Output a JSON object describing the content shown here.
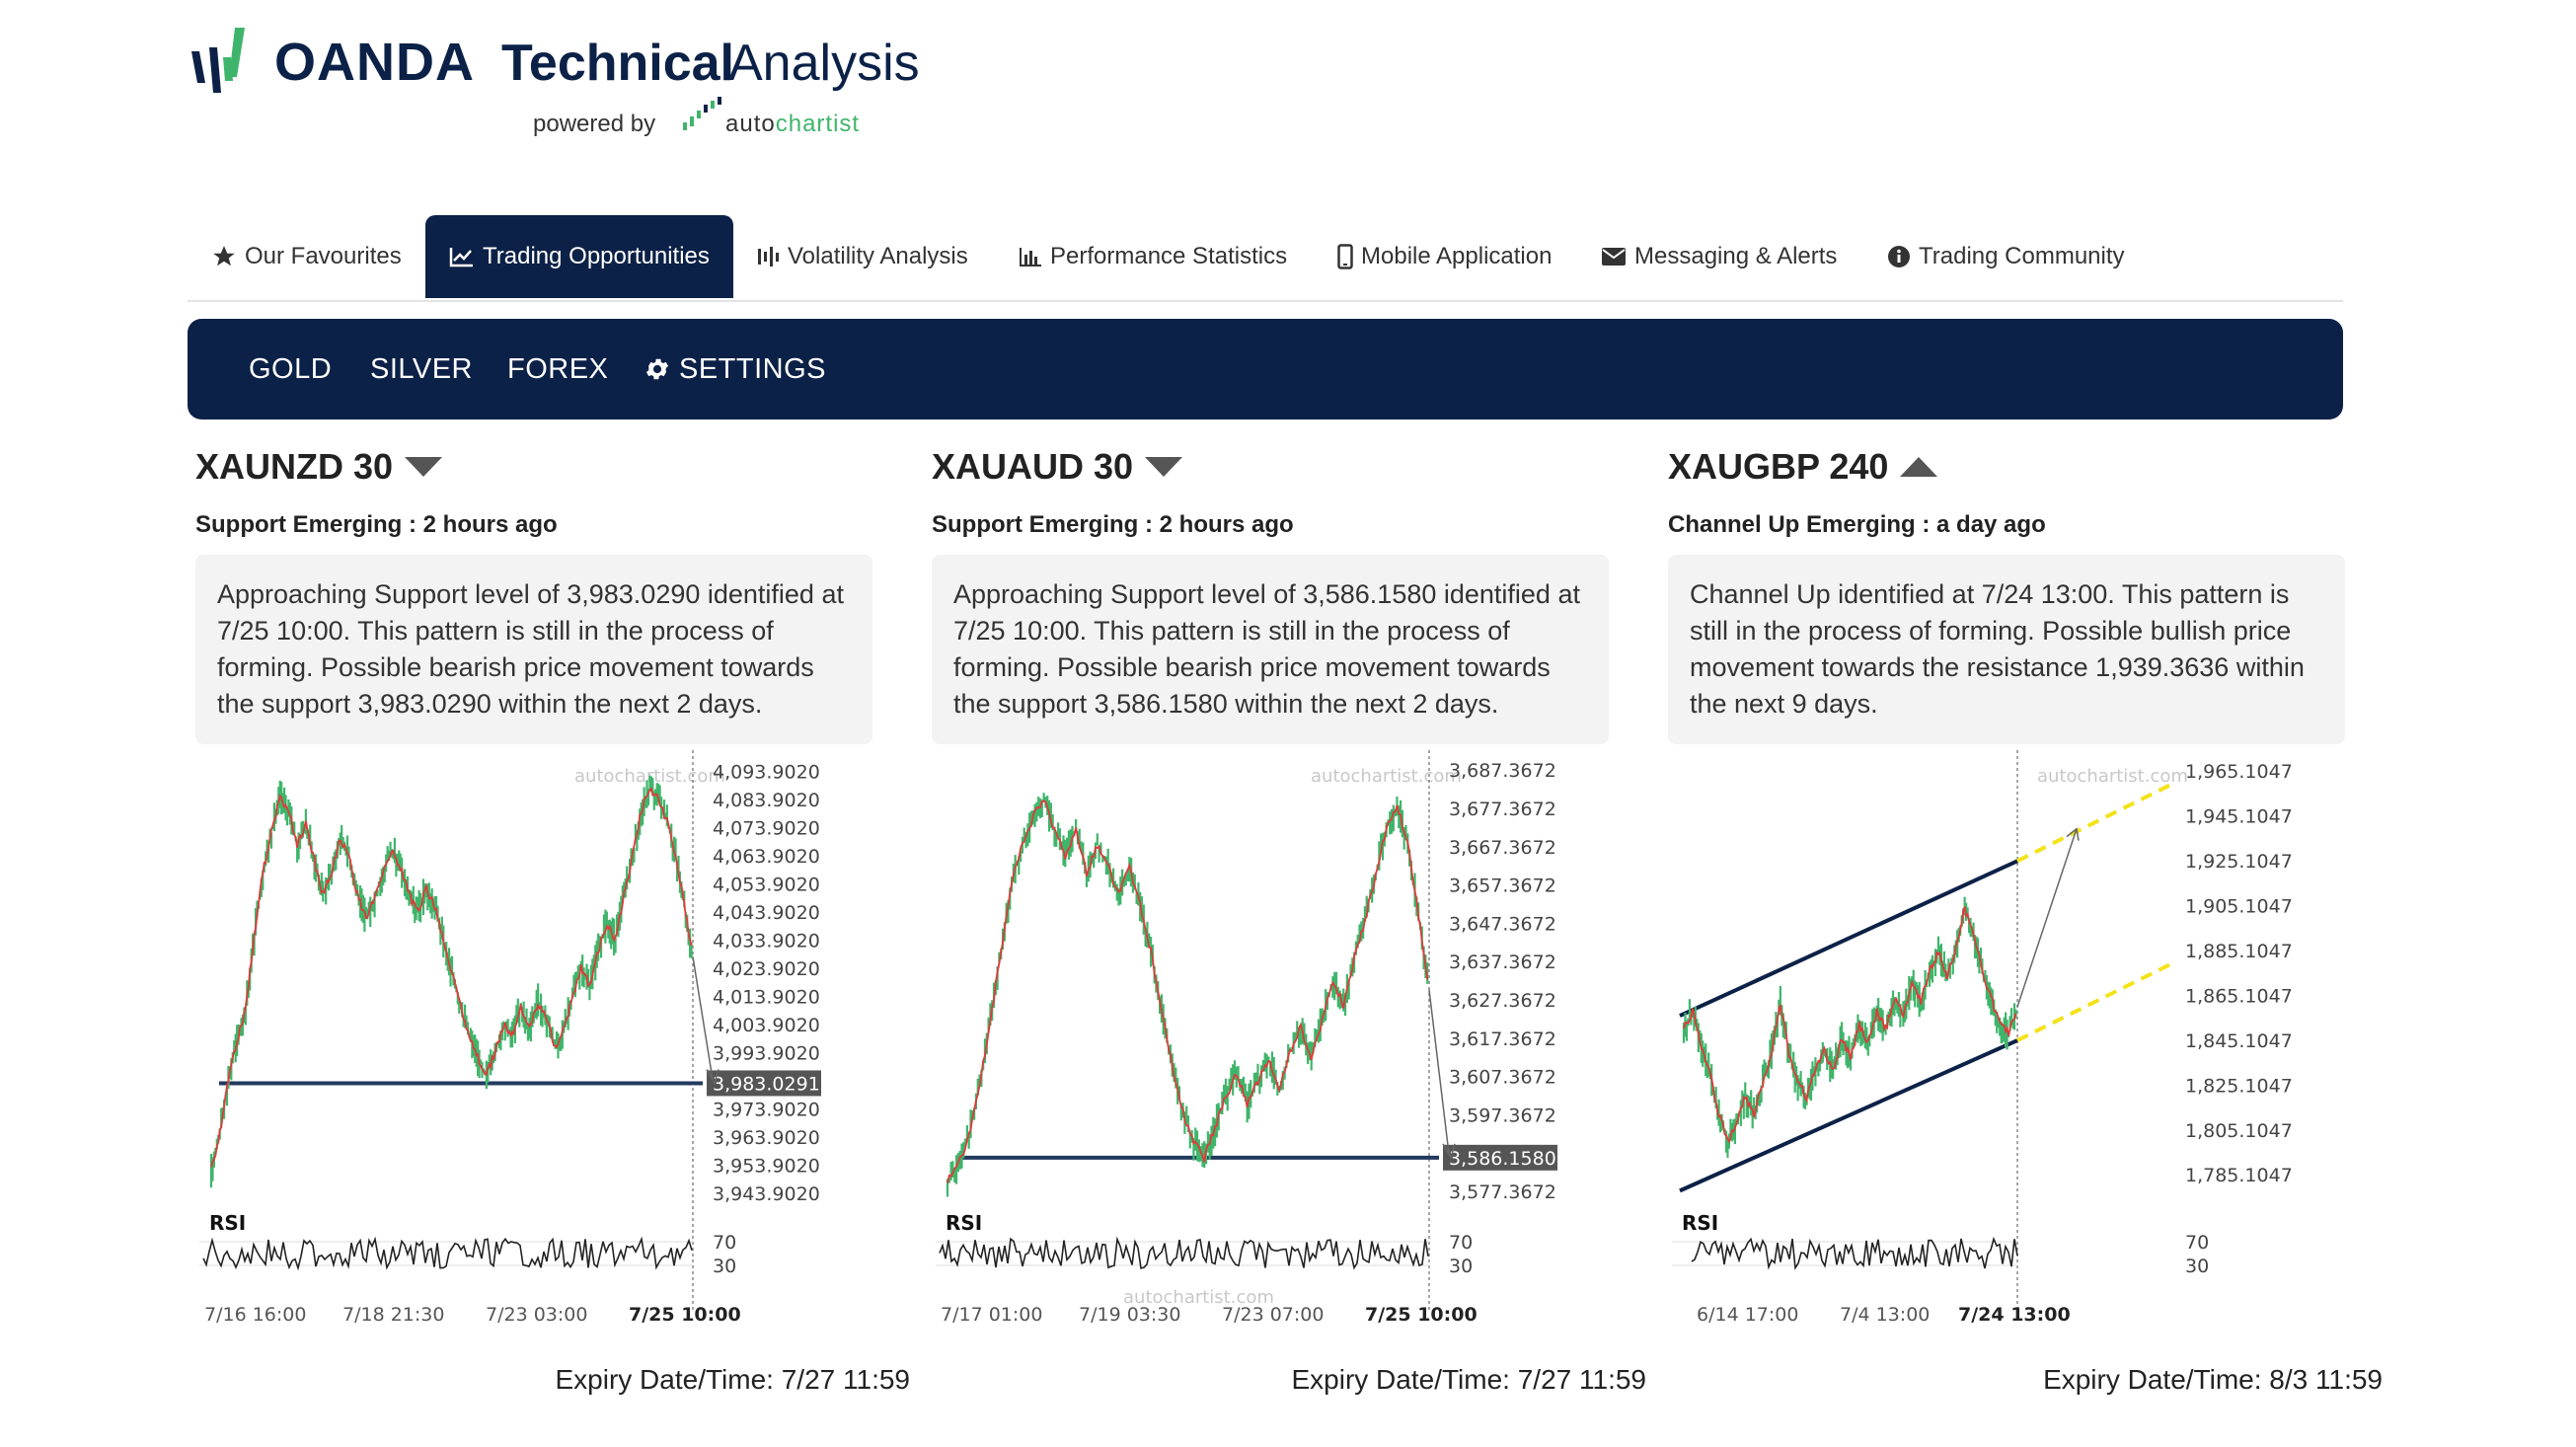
{
  "header": {
    "brand": "OANDA",
    "title_bold": "Technical",
    "title_light": "Analysis",
    "powered_by": "powered by",
    "partner_a": "auto",
    "partner_b": "chartist"
  },
  "nav": {
    "tabs": [
      {
        "label": "Our Favourites",
        "icon": "star-icon"
      },
      {
        "label": "Trading Opportunities",
        "icon": "line-chart-icon",
        "active": true
      },
      {
        "label": "Volatility Analysis",
        "icon": "candles-icon"
      },
      {
        "label": "Performance Statistics",
        "icon": "bar-chart-icon"
      },
      {
        "label": "Mobile Application",
        "icon": "mobile-icon"
      },
      {
        "label": "Messaging & Alerts",
        "icon": "envelope-icon"
      },
      {
        "label": "Trading Community",
        "icon": "info-icon"
      }
    ]
  },
  "subnav": {
    "items": [
      {
        "label": "GOLD"
      },
      {
        "label": "SILVER"
      },
      {
        "label": "FOREX"
      },
      {
        "label": "SETTINGS",
        "icon": "gear-icon"
      }
    ]
  },
  "colors": {
    "navy": "#0c2147",
    "up": "#3fb56b",
    "down": "#e03a3a",
    "projection": "#f4e21a"
  },
  "panels": [
    {
      "title": "XAUNZD 30",
      "direction": "down",
      "subtitle": "Support Emerging : 2 hours ago",
      "description": "Approaching Support level of 3,983.0290 identified at 7/25 10:00. This pattern is still in the process of forming. Possible bearish price movement towards the support 3,983.0290 within the next 2 days.",
      "expiry": "Expiry Date/Time: 7/27 11:59",
      "chart_data": {
        "type": "line",
        "pattern": "support",
        "watermark": "autochartist.com",
        "y_ticks": [
          "4,093.9020",
          "4,083.9020",
          "4,073.9020",
          "4,063.9020",
          "4,053.9020",
          "4,043.9020",
          "4,033.9020",
          "4,023.9020",
          "4,013.9020",
          "4,003.9020",
          "3,993.9020",
          "3,983.0291",
          "3,973.9020",
          "3,963.9020",
          "3,953.9020",
          "3,943.9020"
        ],
        "highlight_label": "3,983.0291",
        "support_level": 3983.0291,
        "ylim": [
          3940,
          4098
        ],
        "price": [
          3952,
          3965,
          3985,
          3998,
          4010,
          4035,
          4058,
          4072,
          4085,
          4080,
          4068,
          4075,
          4062,
          4050,
          4058,
          4070,
          4064,
          4050,
          4042,
          4048,
          4058,
          4066,
          4060,
          4050,
          4044,
          4052,
          4046,
          4034,
          4022,
          4010,
          4000,
          3992,
          3986,
          3994,
          4004,
          4000,
          4010,
          4002,
          4012,
          4006,
          3996,
          4002,
          4014,
          4024,
          4018,
          4030,
          4040,
          4034,
          4050,
          4064,
          4080,
          4088,
          4084,
          4076,
          4064,
          4046,
          4028
        ],
        "rsi_ticks": [
          "70",
          "30"
        ],
        "rsi_label": "RSI",
        "x_ticks": [
          "7/16 16:00",
          "7/18 21:30",
          "7/23 03:00",
          "7/25 10:00"
        ],
        "x_bold_index": 3
      }
    },
    {
      "title": "XAUAUD 30",
      "direction": "down",
      "subtitle": "Support Emerging : 2 hours ago",
      "description": "Approaching Support level of 3,586.1580 identified at 7/25 10:00. This pattern is still in the process of forming. Possible bearish price movement towards the support 3,586.1580 within the next 2 days.",
      "expiry": "Expiry Date/Time: 7/27 11:59",
      "chart_data": {
        "type": "line",
        "pattern": "support",
        "watermark": "autochartist.com",
        "y_ticks": [
          "3,687.3672",
          "3,677.3672",
          "3,667.3672",
          "3,657.3672",
          "3,647.3672",
          "3,637.3672",
          "3,627.3672",
          "3,617.3672",
          "3,607.3672",
          "3,597.3672",
          "3,586.1580",
          "3,577.3672"
        ],
        "highlight_label": "3,586.1580",
        "support_level": 3586.158,
        "ylim": [
          3574,
          3690
        ],
        "price": [
          3580,
          3584,
          3592,
          3605,
          3622,
          3640,
          3658,
          3668,
          3675,
          3680,
          3672,
          3665,
          3672,
          3660,
          3668,
          3662,
          3655,
          3662,
          3652,
          3640,
          3625,
          3610,
          3598,
          3590,
          3586,
          3594,
          3602,
          3608,
          3600,
          3606,
          3612,
          3604,
          3614,
          3620,
          3612,
          3622,
          3632,
          3626,
          3638,
          3648,
          3660,
          3672,
          3678,
          3668,
          3650,
          3630
        ],
        "rsi_ticks": [
          "70",
          "30"
        ],
        "rsi_label": "RSI",
        "x_ticks": [
          "7/17 01:00",
          "7/19 03:30",
          "7/23 07:00",
          "7/25 10:00"
        ],
        "x_bold_index": 3
      }
    },
    {
      "title": "XAUGBP 240",
      "direction": "up",
      "subtitle": "Channel Up Emerging : a day ago",
      "description": "Channel Up identified at 7/24 13:00. This pattern is still in the process of forming. Possible bullish price movement towards the resistance 1,939.3636 within the next 9 days.",
      "expiry": "Expiry Date/Time: 8/3 11:59",
      "chart_data": {
        "type": "line",
        "pattern": "channel-up",
        "watermark": "autochartist.com",
        "y_ticks": [
          "1,965.1047",
          "1,945.1047",
          "1,925.1047",
          "1,905.1047",
          "1,885.1047",
          "1,865.1047",
          "1,845.1047",
          "1,825.1047",
          "1,805.1047",
          "1,785.1047"
        ],
        "resistance_target": 1939.3636,
        "ylim": [
          1772,
          1970
        ],
        "price": [
          1850,
          1858,
          1842,
          1830,
          1812,
          1800,
          1808,
          1820,
          1812,
          1826,
          1840,
          1862,
          1838,
          1826,
          1820,
          1832,
          1840,
          1832,
          1846,
          1838,
          1852,
          1844,
          1858,
          1850,
          1864,
          1856,
          1870,
          1862,
          1876,
          1884,
          1874,
          1886,
          1904,
          1892,
          1876,
          1864,
          1852,
          1848,
          1860
        ],
        "rsi_ticks": [
          "70",
          "30"
        ],
        "rsi_label": "RSI",
        "x_ticks": [
          "6/14 17:00",
          "7/4 13:00",
          "7/24 13:00"
        ],
        "x_bold_index": 2
      }
    }
  ]
}
